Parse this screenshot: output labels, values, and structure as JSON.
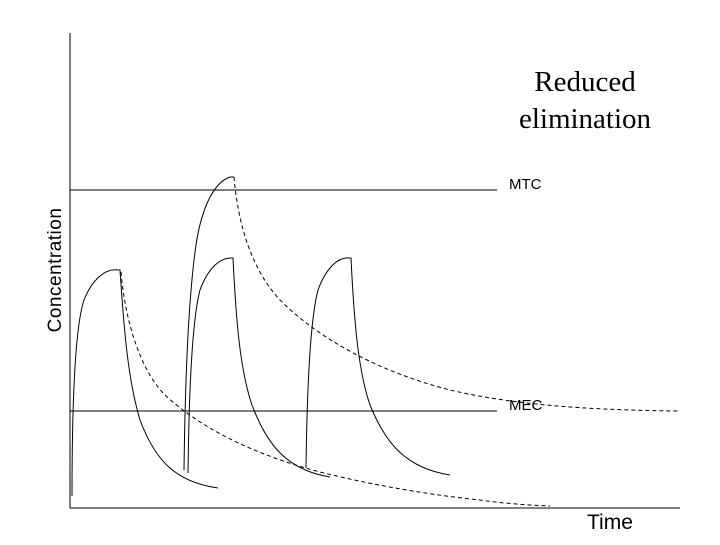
{
  "title": "Reduced elimination",
  "axes": {
    "x_label": "Time",
    "y_label": "Concentration"
  },
  "thresholds": [
    {
      "key": "mtc",
      "label": "MTC"
    },
    {
      "key": "mec",
      "label": "MEC"
    }
  ],
  "curves": {
    "normal_elimination": {
      "style": "solid",
      "doses": 3
    },
    "reduced_elimination": {
      "style": "dashed",
      "doses": 2
    }
  },
  "colors": {
    "line": "#000000",
    "background": "#ffffff"
  }
}
